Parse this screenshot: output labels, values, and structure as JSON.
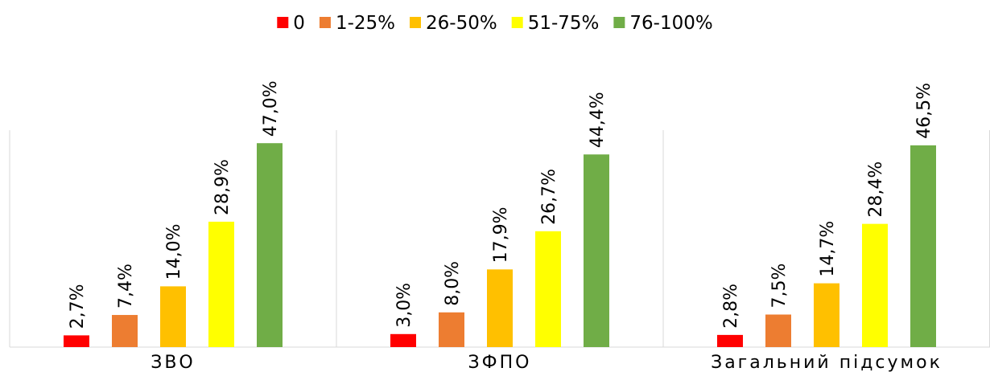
{
  "chart_data": {
    "type": "bar",
    "categories": [
      "ЗВО",
      "ЗФПО",
      "Загальний підсумок"
    ],
    "series": [
      {
        "name": "0",
        "color": "#ff0000",
        "values": [
          2.7,
          3.0,
          2.8
        ],
        "value_labels": [
          "2,7%",
          "3,0%",
          "2,8%"
        ]
      },
      {
        "name": "1-25%",
        "color": "#ed7d31",
        "values": [
          7.4,
          8.0,
          7.5
        ],
        "value_labels": [
          "7,4%",
          "8,0%",
          "7,5%"
        ]
      },
      {
        "name": "26-50%",
        "color": "#ffc000",
        "values": [
          14.0,
          17.9,
          14.7
        ],
        "value_labels": [
          "14,0%",
          "17,9%",
          "14,7%"
        ]
      },
      {
        "name": "51-75%",
        "color": "#ffff00",
        "values": [
          28.9,
          26.7,
          28.4
        ],
        "value_labels": [
          "28,9%",
          "26,7%",
          "28,4%"
        ]
      },
      {
        "name": "76-100%",
        "color": "#70ad47",
        "values": [
          47.0,
          44.4,
          46.5
        ],
        "value_labels": [
          "47,0%",
          "44,4%",
          "46,5%"
        ]
      }
    ],
    "ylim": [
      0,
      50
    ],
    "legend": "top"
  }
}
